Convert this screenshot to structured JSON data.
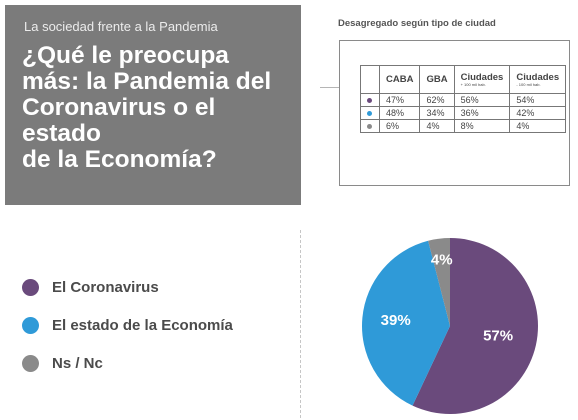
{
  "header": {
    "kicker": "La sociedad frente a la Pandemia",
    "question_lines": [
      "¿Qué le preocupa",
      "más: la Pandemia del",
      "Coronavirus o el estado",
      "de la Economía?"
    ]
  },
  "breakdown": {
    "caption": "Desagregado según tipo de ciudad",
    "columns": [
      {
        "label": "CABA",
        "note": ""
      },
      {
        "label": "GBA",
        "note": ""
      },
      {
        "label": "Ciudades",
        "note": "+ 100 mil hab."
      },
      {
        "label": "Ciudades",
        "note": "- 100 mil hab."
      }
    ],
    "rows": [
      {
        "color": "#6a4a7c",
        "values": [
          "47%",
          "62%",
          "56%",
          "54%"
        ]
      },
      {
        "color": "#2f9ad8",
        "values": [
          "48%",
          "34%",
          "36%",
          "42%"
        ]
      },
      {
        "color": "#8a8a8a",
        "values": [
          "6%",
          "4%",
          "8%",
          "4%"
        ]
      }
    ]
  },
  "chart_data": {
    "type": "pie",
    "slices": [
      {
        "label": "El Coronavirus",
        "value": 57,
        "display": "57%",
        "color": "#6a4a7c"
      },
      {
        "label": "El estado de la Economía",
        "value": 39,
        "display": "39%",
        "color": "#2f9ad8"
      },
      {
        "label": "Ns / Nc",
        "value": 4,
        "display": "4%",
        "color": "#8a8a8a"
      }
    ],
    "legend_position": "left"
  }
}
